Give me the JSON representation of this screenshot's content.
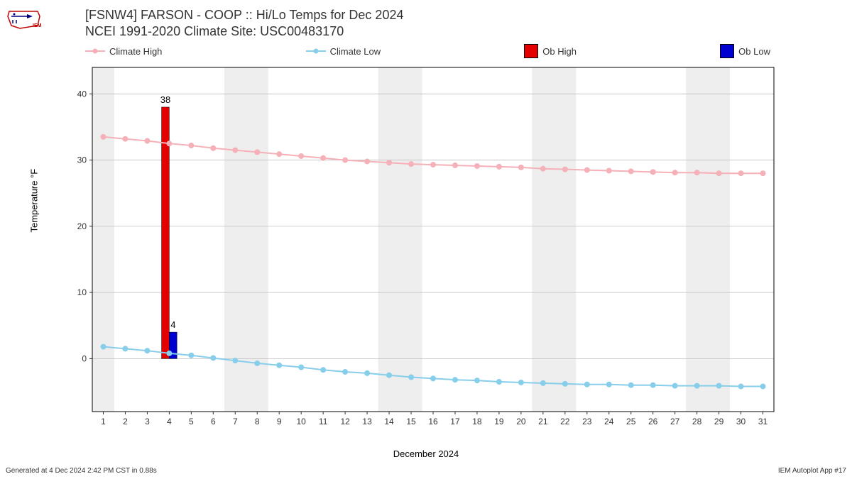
{
  "title": {
    "line1": "[FSNW4] FARSON - COOP :: Hi/Lo Temps for Dec 2024",
    "line2": "NCEI 1991-2020 Climate Site: USC00483170"
  },
  "legend": {
    "climate_high": "Climate High",
    "climate_low": "Climate Low",
    "ob_high": "Ob High",
    "ob_low": "Ob Low"
  },
  "axes": {
    "ylabel": "Temperature °F",
    "xlabel": "December 2024",
    "ymin": -8,
    "ymax": 44,
    "ytick_step": 10,
    "ytick_start": 0,
    "ytick_end": 40,
    "xmin": 0.5,
    "xmax": 31.5,
    "days": [
      1,
      2,
      3,
      4,
      5,
      6,
      7,
      8,
      9,
      10,
      11,
      12,
      13,
      14,
      15,
      16,
      17,
      18,
      19,
      20,
      21,
      22,
      23,
      24,
      25,
      26,
      27,
      28,
      29,
      30,
      31
    ]
  },
  "colors": {
    "climate_high": "#f5b0b8",
    "climate_low": "#87ceeb",
    "ob_high": "#e50000",
    "ob_low": "#0000d0",
    "grid": "#bfbfbf",
    "weekend_band": "#eeeeee",
    "axis": "#000000",
    "bg": "#ffffff"
  },
  "weekend_bands": [
    [
      0.5,
      1.5
    ],
    [
      6.5,
      8.5
    ],
    [
      13.5,
      15.5
    ],
    [
      20.5,
      22.5
    ],
    [
      27.5,
      29.5
    ]
  ],
  "climate_high_series": [
    33.5,
    33.2,
    32.9,
    32.5,
    32.2,
    31.8,
    31.5,
    31.2,
    30.9,
    30.6,
    30.3,
    30.0,
    29.8,
    29.6,
    29.4,
    29.3,
    29.2,
    29.1,
    29.0,
    28.9,
    28.7,
    28.6,
    28.5,
    28.4,
    28.3,
    28.2,
    28.1,
    28.1,
    28.0,
    28.0,
    28.0
  ],
  "climate_low_series": [
    1.8,
    1.5,
    1.2,
    0.8,
    0.5,
    0.1,
    -0.3,
    -0.7,
    -1.0,
    -1.3,
    -1.7,
    -2.0,
    -2.2,
    -2.5,
    -2.8,
    -3.0,
    -3.2,
    -3.3,
    -3.5,
    -3.6,
    -3.7,
    -3.8,
    -3.9,
    -3.9,
    -4.0,
    -4.0,
    -4.1,
    -4.1,
    -4.1,
    -4.2,
    -4.2
  ],
  "ob_high": {
    "day": 4,
    "value": 38,
    "label": "38"
  },
  "ob_low": {
    "day": 4,
    "value": 4,
    "label": "4"
  },
  "bar_width": 0.35,
  "marker_radius": 3.5,
  "line_width": 2,
  "footer": {
    "left": "Generated at 4 Dec 2024 2:42 PM CST in 0.88s",
    "right": "IEM Autoplot App #17"
  }
}
